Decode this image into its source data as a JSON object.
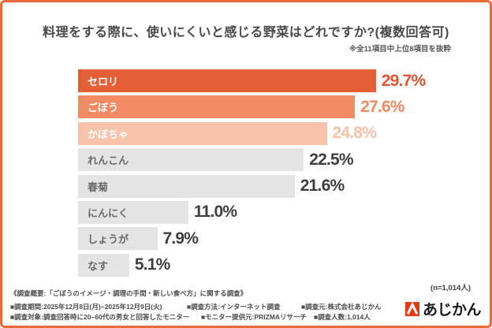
{
  "header": {
    "title": "料理をする際に、使いにくいと感じる野菜はどれですか?(複数回答可)",
    "note": "※全11項目中上位8項目を抜粋"
  },
  "chart_data": {
    "type": "bar",
    "orientation": "horizontal",
    "title": "料理をする際に、使いにくいと感じる野菜はどれですか?(複数回答可)",
    "categories": [
      "セロリ",
      "ごぼう",
      "かぼちゃ",
      "れんこん",
      "春菊",
      "にんにく",
      "しょうが",
      "なす"
    ],
    "values": [
      29.7,
      27.6,
      24.8,
      22.5,
      21.6,
      11.0,
      7.9,
      5.1
    ],
    "value_labels": [
      "29.7%",
      "27.6%",
      "24.8%",
      "22.5%",
      "21.6%",
      "11.0%",
      "7.9%",
      "5.1%"
    ],
    "bar_colors": [
      "#e55f36",
      "#f28a63",
      "#f8c2ab",
      "#e4e4e4",
      "#e4e4e4",
      "#e4e4e4",
      "#e4e4e4",
      "#e4e4e4"
    ],
    "label_colors": [
      "#ffffff",
      "#ffffff",
      "#ffffff",
      "#686868",
      "#686868",
      "#686868",
      "#686868",
      "#686868"
    ],
    "value_colors": [
      "#e05531",
      "#f28a63",
      "#f8c2ab",
      "#3e3e3e",
      "#3e3e3e",
      "#3e3e3e",
      "#3e3e3e",
      "#3e3e3e"
    ],
    "xlim": [
      0,
      30
    ],
    "grid": false,
    "legend": false,
    "unit": "%"
  },
  "sample_note": "(n=1,014人)",
  "footer": {
    "overview": "《調査概要:「ごぼうのイメージ・調理の手間・新しい食べ方」に関する調査》",
    "rows": [
      {
        "cols": [
          "■調査期間:2025年12月8日(月)~2025年12月9日(火)",
          "■調査方法:インターネット調査",
          "■調査元:株式会社あじかん"
        ]
      },
      {
        "cols": [
          "■調査対象:調査回答時に20~60代の男女と回答したモニター",
          "■モニター提供元:PRIZMAリサーチ",
          "■調査人数:1,014人"
        ]
      }
    ],
    "logo_text": "あじかん",
    "logo_color": "#e8380d"
  },
  "colors": {
    "frame_border": "#ec6a38",
    "title_text": "#484848",
    "accent_bar_1": "#e55f36",
    "accent_bar_2": "#f28a63",
    "accent_bar_3": "#f8c2ab",
    "neutral_bar": "#e4e4e4",
    "logo_red": "#e8380d"
  }
}
